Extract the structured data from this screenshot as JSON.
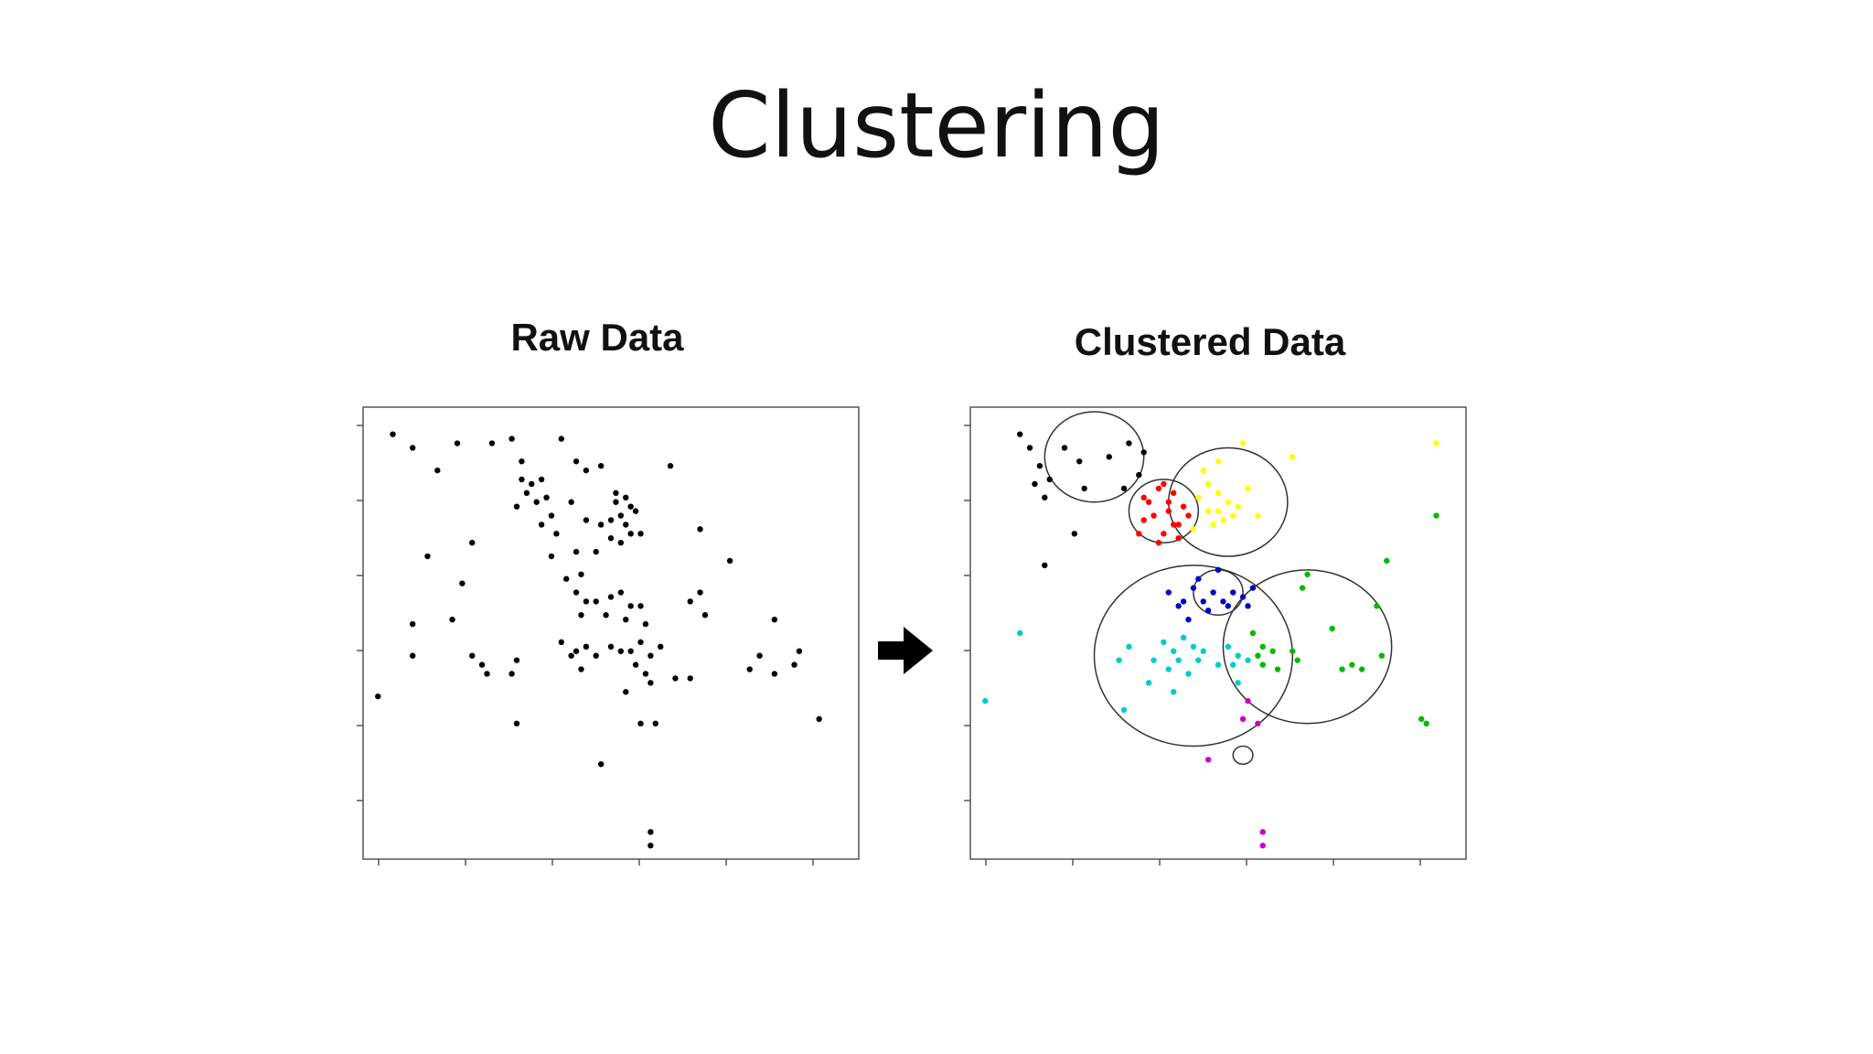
{
  "slide": {
    "title": "Clustering"
  },
  "chart_data": [
    {
      "type": "scatter",
      "title": "Raw Data",
      "xlim": [
        0,
        10
      ],
      "ylim": [
        0,
        10
      ],
      "grid": false,
      "series": [
        {
          "color": "#000000",
          "points": [
            [
              0.6,
              9.4
            ],
            [
              1.0,
              9.1
            ],
            [
              1.9,
              9.2
            ],
            [
              2.6,
              9.2
            ],
            [
              3.0,
              9.3
            ],
            [
              4.0,
              9.3
            ],
            [
              3.2,
              8.8
            ],
            [
              1.5,
              8.6
            ],
            [
              3.2,
              8.4
            ],
            [
              3.4,
              8.3
            ],
            [
              3.6,
              8.4
            ],
            [
              3.3,
              8.1
            ],
            [
              3.7,
              8.0
            ],
            [
              3.5,
              7.9
            ],
            [
              3.8,
              7.6
            ],
            [
              3.6,
              7.4
            ],
            [
              3.9,
              7.2
            ],
            [
              3.1,
              7.8
            ],
            [
              4.3,
              8.8
            ],
            [
              4.5,
              8.6
            ],
            [
              4.8,
              8.7
            ],
            [
              4.2,
              7.9
            ],
            [
              4.5,
              7.5
            ],
            [
              4.8,
              7.4
            ],
            [
              5.1,
              8.1
            ],
            [
              5.3,
              8.0
            ],
            [
              5.4,
              7.8
            ],
            [
              5.2,
              7.6
            ],
            [
              5.5,
              7.7
            ],
            [
              5.1,
              7.9
            ],
            [
              5.3,
              7.4
            ],
            [
              5.6,
              7.2
            ],
            [
              5.0,
              7.5
            ],
            [
              5.4,
              7.2
            ],
            [
              5.2,
              7.0
            ],
            [
              5.0,
              7.1
            ],
            [
              4.7,
              6.8
            ],
            [
              4.3,
              6.8
            ],
            [
              2.2,
              7.0
            ],
            [
              1.3,
              6.7
            ],
            [
              6.2,
              8.7
            ],
            [
              6.8,
              7.3
            ],
            [
              7.4,
              6.6
            ],
            [
              4.4,
              6.3
            ],
            [
              3.8,
              6.7
            ],
            [
              2.0,
              6.1
            ],
            [
              4.1,
              6.2
            ],
            [
              6.8,
              5.9
            ],
            [
              4.3,
              5.9
            ],
            [
              4.5,
              5.7
            ],
            [
              4.7,
              5.7
            ],
            [
              5.0,
              5.8
            ],
            [
              5.2,
              5.9
            ],
            [
              5.4,
              5.6
            ],
            [
              5.6,
              5.6
            ],
            [
              4.4,
              5.4
            ],
            [
              4.9,
              5.4
            ],
            [
              5.3,
              5.3
            ],
            [
              5.7,
              5.2
            ],
            [
              6.6,
              5.7
            ],
            [
              6.9,
              5.4
            ],
            [
              8.3,
              5.3
            ],
            [
              1.0,
              5.2
            ],
            [
              1.8,
              5.3
            ],
            [
              4.0,
              4.8
            ],
            [
              4.3,
              4.6
            ],
            [
              4.5,
              4.7
            ],
            [
              4.7,
              4.5
            ],
            [
              4.2,
              4.5
            ],
            [
              5.0,
              4.7
            ],
            [
              5.2,
              4.6
            ],
            [
              5.4,
              4.6
            ],
            [
              5.6,
              4.8
            ],
            [
              5.8,
              4.5
            ],
            [
              6.0,
              4.7
            ],
            [
              4.4,
              4.2
            ],
            [
              5.5,
              4.3
            ],
            [
              5.7,
              4.1
            ],
            [
              5.8,
              3.9
            ],
            [
              6.3,
              4.0
            ],
            [
              6.6,
              4.0
            ],
            [
              8.0,
              4.5
            ],
            [
              8.8,
              4.6
            ],
            [
              7.8,
              4.2
            ],
            [
              8.3,
              4.1
            ],
            [
              8.7,
              4.3
            ],
            [
              2.4,
              4.3
            ],
            [
              2.5,
              4.1
            ],
            [
              2.2,
              4.5
            ],
            [
              3.1,
              4.4
            ],
            [
              3.0,
              4.1
            ],
            [
              1.0,
              4.5
            ],
            [
              5.3,
              3.7
            ],
            [
              0.3,
              3.6
            ],
            [
              3.1,
              3.0
            ],
            [
              5.6,
              3.0
            ],
            [
              5.9,
              3.0
            ],
            [
              9.2,
              3.1
            ],
            [
              4.8,
              2.1
            ],
            [
              5.8,
              0.6
            ],
            [
              5.8,
              0.3
            ]
          ]
        }
      ]
    },
    {
      "type": "scatter",
      "title": "Clustered Data",
      "xlim": [
        0,
        10
      ],
      "ylim": [
        0,
        10
      ],
      "grid": false,
      "series": [
        {
          "color": "#000000",
          "points": [
            [
              1.0,
              9.4
            ],
            [
              1.2,
              9.1
            ],
            [
              1.4,
              8.7
            ],
            [
              1.9,
              9.1
            ],
            [
              2.2,
              8.8
            ],
            [
              2.8,
              8.9
            ],
            [
              3.2,
              9.2
            ],
            [
              3.5,
              9.0
            ],
            [
              1.6,
              8.4
            ],
            [
              1.3,
              8.3
            ],
            [
              1.5,
              8.0
            ],
            [
              2.3,
              8.2
            ],
            [
              3.4,
              8.5
            ],
            [
              3.1,
              8.2
            ],
            [
              2.1,
              7.2
            ],
            [
              1.5,
              6.5
            ]
          ]
        },
        {
          "color": "#ff0000",
          "points": [
            [
              3.5,
              8.0
            ],
            [
              3.8,
              8.2
            ],
            [
              4.0,
              7.9
            ],
            [
              3.7,
              7.6
            ],
            [
              4.1,
              7.4
            ],
            [
              3.9,
              7.2
            ],
            [
              3.5,
              7.5
            ],
            [
              3.8,
              7.0
            ],
            [
              4.2,
              7.1
            ],
            [
              4.3,
              7.8
            ],
            [
              4.0,
              7.7
            ],
            [
              4.4,
              7.6
            ],
            [
              3.6,
              7.9
            ],
            [
              3.9,
              8.3
            ],
            [
              3.4,
              7.2
            ],
            [
              4.1,
              8.1
            ],
            [
              4.2,
              7.4
            ]
          ]
        },
        {
          "color": "#ffff00",
          "points": [
            [
              4.8,
              8.3
            ],
            [
              5.0,
              8.1
            ],
            [
              5.2,
              7.9
            ],
            [
              5.0,
              7.7
            ],
            [
              4.8,
              7.7
            ],
            [
              5.3,
              7.6
            ],
            [
              5.1,
              7.5
            ],
            [
              4.9,
              7.4
            ],
            [
              5.4,
              7.8
            ],
            [
              4.6,
              8.0
            ],
            [
              5.6,
              8.2
            ],
            [
              5.8,
              7.6
            ],
            [
              4.5,
              7.3
            ],
            [
              5.0,
              8.8
            ],
            [
              5.5,
              9.2
            ],
            [
              6.5,
              8.9
            ],
            [
              9.4,
              9.2
            ],
            [
              4.7,
              8.6
            ]
          ]
        },
        {
          "color": "#0000cc",
          "points": [
            [
              4.0,
              5.9
            ],
            [
              4.3,
              5.7
            ],
            [
              4.5,
              6.0
            ],
            [
              4.7,
              5.7
            ],
            [
              4.9,
              5.9
            ],
            [
              5.1,
              5.7
            ],
            [
              5.3,
              5.9
            ],
            [
              5.5,
              5.8
            ],
            [
              4.2,
              5.6
            ],
            [
              4.8,
              5.5
            ],
            [
              5.2,
              5.6
            ],
            [
              5.6,
              5.6
            ],
            [
              4.6,
              6.2
            ],
            [
              5.0,
              6.4
            ],
            [
              5.7,
              6.0
            ],
            [
              4.4,
              5.3
            ]
          ]
        },
        {
          "color": "#00cccc",
          "points": [
            [
              3.9,
              4.8
            ],
            [
              4.1,
              4.6
            ],
            [
              4.3,
              4.9
            ],
            [
              4.5,
              4.7
            ],
            [
              4.2,
              4.4
            ],
            [
              4.0,
              4.2
            ],
            [
              4.6,
              4.4
            ],
            [
              4.4,
              4.1
            ],
            [
              5.2,
              4.7
            ],
            [
              5.4,
              4.5
            ],
            [
              5.0,
              4.3
            ],
            [
              5.3,
              4.3
            ],
            [
              3.7,
              4.4
            ],
            [
              3.2,
              4.7
            ],
            [
              3.0,
              4.4
            ],
            [
              1.0,
              5.0
            ],
            [
              0.3,
              3.5
            ],
            [
              3.1,
              3.3
            ],
            [
              4.7,
              4.6
            ],
            [
              5.6,
              4.4
            ],
            [
              5.4,
              3.9
            ],
            [
              3.6,
              3.9
            ],
            [
              4.1,
              3.7
            ]
          ]
        },
        {
          "color": "#00bb00",
          "points": [
            [
              5.7,
              5.0
            ],
            [
              5.9,
              4.7
            ],
            [
              5.8,
              4.5
            ],
            [
              6.1,
              4.6
            ],
            [
              5.9,
              4.3
            ],
            [
              6.2,
              4.2
            ],
            [
              6.5,
              4.6
            ],
            [
              6.6,
              4.4
            ],
            [
              7.5,
              4.2
            ],
            [
              7.7,
              4.3
            ],
            [
              7.9,
              4.2
            ],
            [
              8.3,
              4.5
            ],
            [
              7.3,
              5.1
            ],
            [
              8.2,
              5.6
            ],
            [
              6.7,
              6.0
            ],
            [
              6.8,
              6.3
            ],
            [
              9.4,
              7.6
            ],
            [
              9.1,
              3.1
            ],
            [
              9.2,
              3.0
            ],
            [
              8.4,
              6.6
            ]
          ]
        },
        {
          "color": "#cc00cc",
          "points": [
            [
              5.6,
              3.5
            ],
            [
              5.5,
              3.1
            ],
            [
              5.8,
              3.0
            ],
            [
              4.8,
              2.2
            ],
            [
              5.9,
              0.6
            ],
            [
              5.9,
              0.3
            ]
          ]
        }
      ],
      "circles": [
        {
          "cx": 2.5,
          "cy": 8.9,
          "r": 1.0
        },
        {
          "cx": 3.9,
          "cy": 7.7,
          "r": 0.7
        },
        {
          "cx": 5.2,
          "cy": 7.9,
          "r": 1.2
        },
        {
          "cx": 4.5,
          "cy": 4.5,
          "r": 2.0
        },
        {
          "cx": 6.8,
          "cy": 4.7,
          "r": 1.7
        },
        {
          "cx": 5.0,
          "cy": 5.9,
          "r": 0.5
        },
        {
          "cx": 5.5,
          "cy": 2.3,
          "r": 0.2
        }
      ]
    }
  ]
}
